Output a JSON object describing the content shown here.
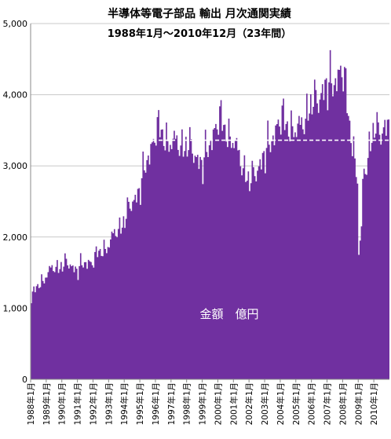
{
  "chart_data": {
    "type": "area",
    "title": "半導体等電子部品 輸出 月次通関実績",
    "subtitle": "1988年1月～2010年12月（23年間）",
    "series_label": "金額　億円",
    "ylim": [
      0,
      5000
    ],
    "yticks": [
      "0",
      "1,000",
      "2,000",
      "3,000",
      "4,000",
      "5,000"
    ],
    "xticks": [
      "1988年1月",
      "1989年1月",
      "1990年1月",
      "1991年1月",
      "1992年1月",
      "1993年1月",
      "1994年1月",
      "1995年1月",
      "1996年1月",
      "1997年1月",
      "1998年1月",
      "1999年1月",
      "2000年1月",
      "2001年1月",
      "2002年1月",
      "2003年1月",
      "2004年1月",
      "2005年1月",
      "2006年1月",
      "2007年1月",
      "2008年1月",
      "2009年1月",
      "2010年1月"
    ],
    "grid": true,
    "color": "#7030a0",
    "reference_line": {
      "value": 3360,
      "from_year": 1995,
      "style": "dashed",
      "color": "#ffffff"
    },
    "annual_points": [
      [
        1988,
        1150
      ],
      [
        1989,
        1480
      ],
      [
        1990,
        1620
      ],
      [
        1991,
        1550
      ],
      [
        1992,
        1680
      ],
      [
        1993,
        1900
      ],
      [
        1994,
        2250
      ],
      [
        1995,
        2700
      ],
      [
        1996,
        3500
      ],
      [
        1997,
        3300
      ],
      [
        1998,
        3280
      ],
      [
        1999,
        3000
      ],
      [
        2000,
        3650
      ],
      [
        2001,
        3300
      ],
      [
        2002,
        2750
      ],
      [
        2003,
        3150
      ],
      [
        2004,
        3650
      ],
      [
        2005,
        3450
      ],
      [
        2006,
        3850
      ],
      [
        2007,
        4100
      ],
      [
        2008,
        4300
      ],
      [
        2009,
        2600
      ],
      [
        2010,
        3500
      ]
    ]
  }
}
